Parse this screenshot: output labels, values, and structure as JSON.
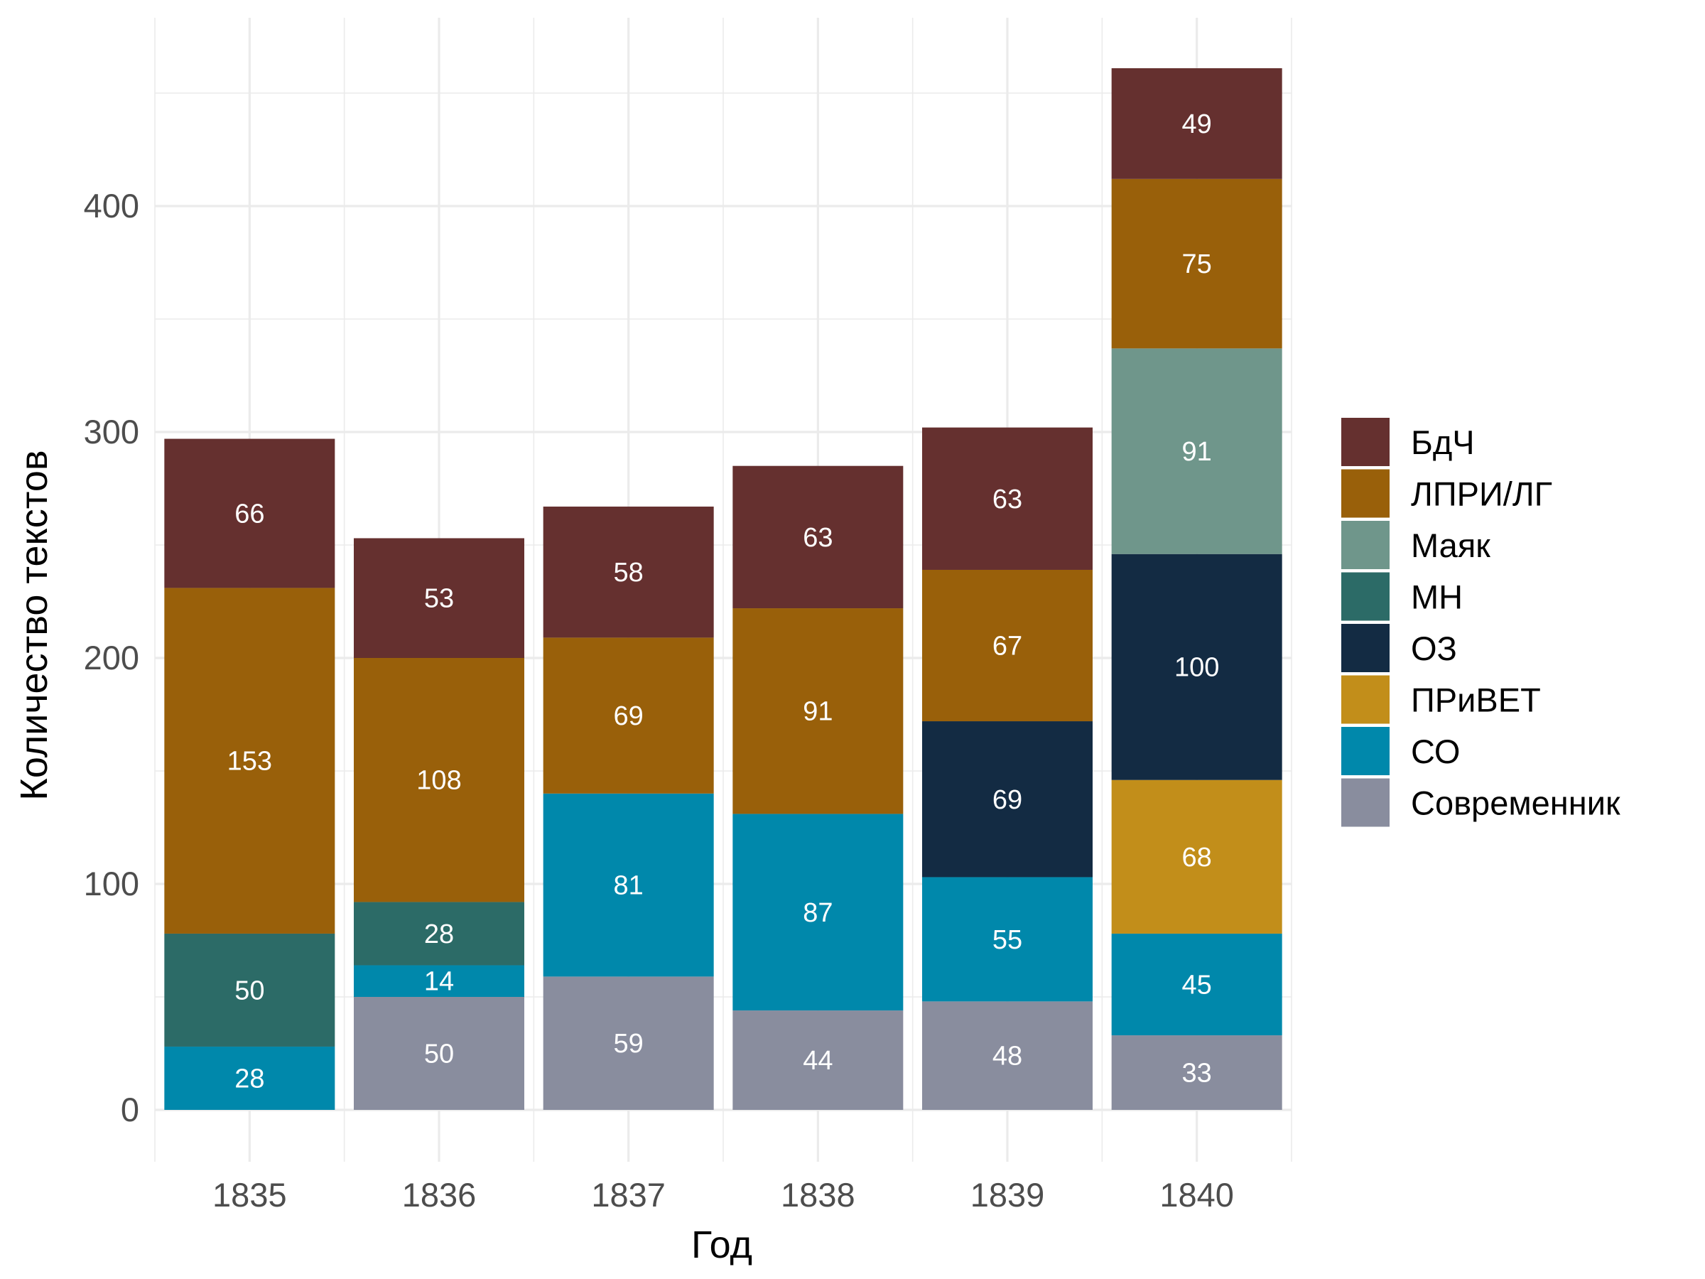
{
  "chart_data": {
    "type": "bar",
    "stacked": true,
    "xlabel": "Год",
    "ylabel": "Количество текстов",
    "categories": [
      "1835",
      "1836",
      "1837",
      "1838",
      "1839",
      "1840"
    ],
    "ylim": [
      0,
      460
    ],
    "yticks": [
      0,
      100,
      200,
      300,
      400
    ],
    "grid": true,
    "legend_position": "right",
    "series": [
      {
        "name": "Современник",
        "color": "#898d9e",
        "values": [
          null,
          50,
          59,
          44,
          48,
          33
        ]
      },
      {
        "name": "СО",
        "color": "#0088ab",
        "values": [
          28,
          14,
          81,
          87,
          55,
          45
        ]
      },
      {
        "name": "ПРиВЕТ",
        "color": "#c28e1a",
        "values": [
          null,
          null,
          null,
          null,
          null,
          68
        ]
      },
      {
        "name": "ОЗ",
        "color": "#132b43",
        "values": [
          null,
          null,
          null,
          null,
          69,
          100
        ]
      },
      {
        "name": "МН",
        "color": "#2c6b67",
        "values": [
          50,
          28,
          null,
          null,
          null,
          null
        ]
      },
      {
        "name": "Маяк",
        "color": "#6f968b",
        "values": [
          null,
          null,
          null,
          null,
          null,
          91
        ]
      },
      {
        "name": "ЛПРИ/ЛГ",
        "color": "#99600a",
        "values": [
          153,
          108,
          69,
          91,
          67,
          75
        ]
      },
      {
        "name": "БдЧ",
        "color": "#65302f",
        "values": [
          66,
          53,
          58,
          63,
          63,
          49
        ]
      }
    ]
  },
  "legend_order": [
    "БдЧ",
    "ЛПРИ/ЛГ",
    "Маяк",
    "МН",
    "ОЗ",
    "ПРиВЕТ",
    "СО",
    "Современник"
  ]
}
